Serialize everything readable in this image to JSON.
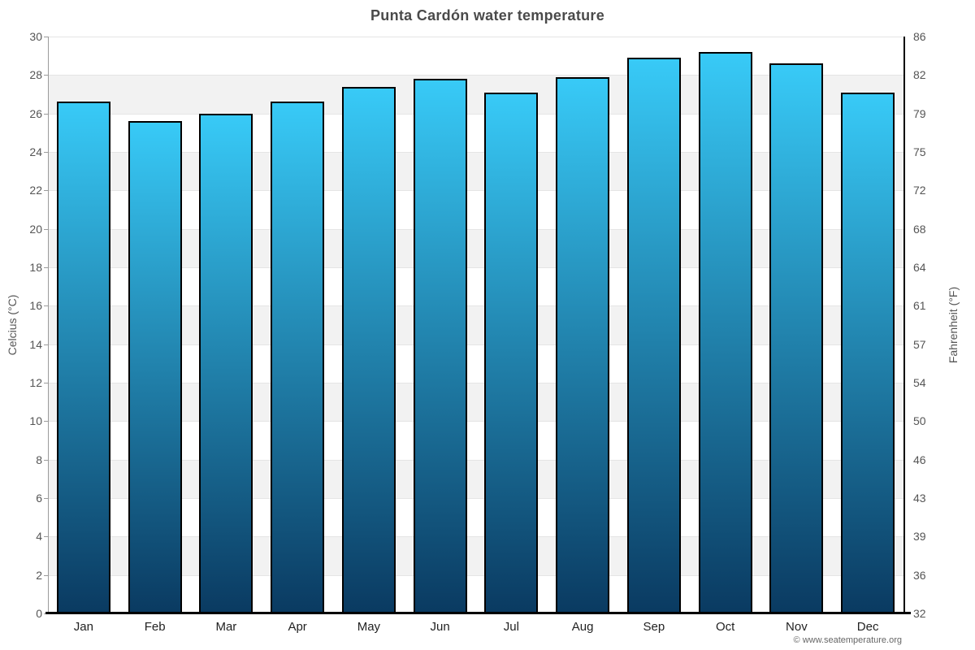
{
  "chart_data": {
    "type": "bar",
    "title": "Punta Cardón water temperature",
    "categories": [
      "Jan",
      "Feb",
      "Mar",
      "Apr",
      "May",
      "Jun",
      "Jul",
      "Aug",
      "Sep",
      "Oct",
      "Nov",
      "Dec"
    ],
    "values": [
      26.6,
      25.6,
      26.0,
      26.6,
      27.4,
      27.8,
      27.1,
      27.9,
      28.9,
      29.2,
      28.6,
      27.1
    ],
    "unit": "°C",
    "ylabel_left": "Celcius (°C)",
    "ylabel_right": "Fahrenheit (°F)",
    "ylim": [
      0,
      30
    ],
    "ytick_step": 2,
    "yticks_celsius": [
      "30",
      "28",
      "26",
      "24",
      "22",
      "20",
      "18",
      "16",
      "14",
      "12",
      "10",
      "8",
      "6",
      "4",
      "2",
      "0"
    ],
    "yticks_fahrenheit": [
      "86",
      "82",
      "79",
      "75",
      "72",
      "68",
      "64",
      "61",
      "57",
      "54",
      "50",
      "46",
      "43",
      "39",
      "36",
      "32"
    ],
    "grid": true,
    "legend": "none",
    "colors": {
      "bar_top": "#38caf7",
      "bar_bottom": "#0a3a61",
      "bar_border": "#000000",
      "band_light": "#ffffff",
      "band_dark": "#f2f2f2",
      "gridline": "#e5e5e5",
      "axis_left": "#9b9b9b",
      "axis_right": "#000000",
      "axis_bottom": "#000000",
      "title_text": "#4a4a4a",
      "tick_text": "#555555"
    }
  },
  "footer": {
    "copyright": "© www.seatemperature.org"
  }
}
